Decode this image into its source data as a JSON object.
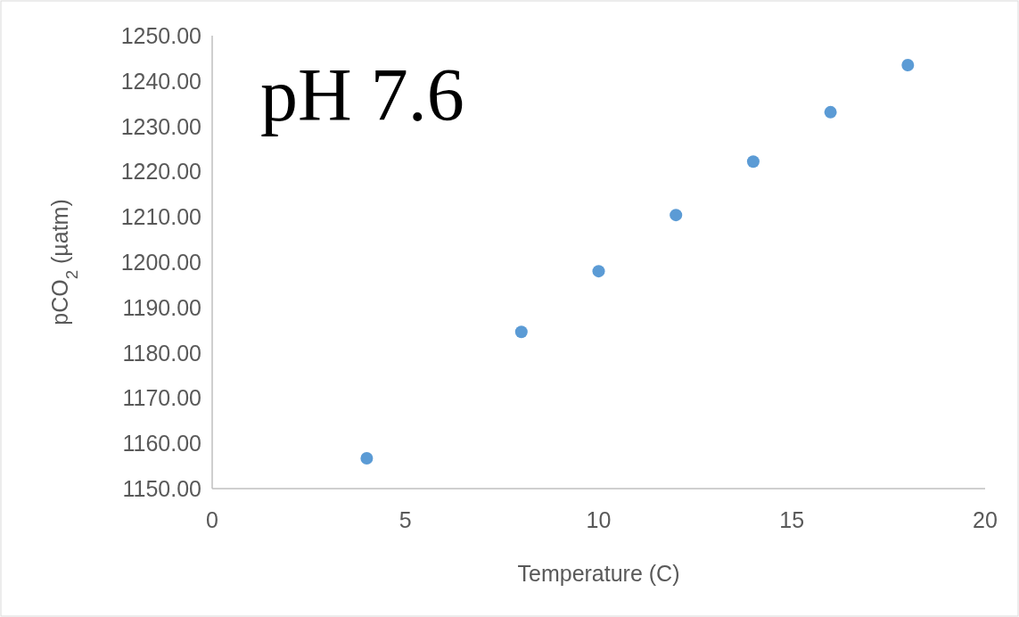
{
  "chart_data": {
    "type": "scatter",
    "title": "pH 7.6",
    "xlabel": "Temperature (C)",
    "ylabel": "pCO$_{2}$ (µatm)",
    "x": [
      4,
      8,
      10,
      12,
      14,
      16,
      18
    ],
    "series": [
      {
        "color": "#5b9bd5",
        "values": [
          1156.7,
          1184.6,
          1198.0,
          1210.4,
          1222.2,
          1233.1,
          1243.5
        ]
      }
    ],
    "xlim": [
      0,
      20
    ],
    "xticks": [
      0,
      5,
      10,
      15,
      20
    ],
    "ylim": [
      1150,
      1250
    ],
    "yticks": [
      {
        "value": 1150,
        "label": "1150.00"
      },
      {
        "value": 1160,
        "label": "1160.00"
      },
      {
        "value": 1170,
        "label": "1170.00"
      },
      {
        "value": 1180,
        "label": "1180.00"
      },
      {
        "value": 1190,
        "label": "1190.00"
      },
      {
        "value": 1200,
        "label": "1200.00"
      },
      {
        "value": 1210,
        "label": "1210.00"
      },
      {
        "value": 1220,
        "label": "1220.00"
      },
      {
        "value": 1230,
        "label": "1230.00"
      },
      {
        "value": 1240,
        "label": "1240.00"
      },
      {
        "value": 1250,
        "label": "1250.00"
      }
    ],
    "grid": false,
    "marker": "circle"
  }
}
